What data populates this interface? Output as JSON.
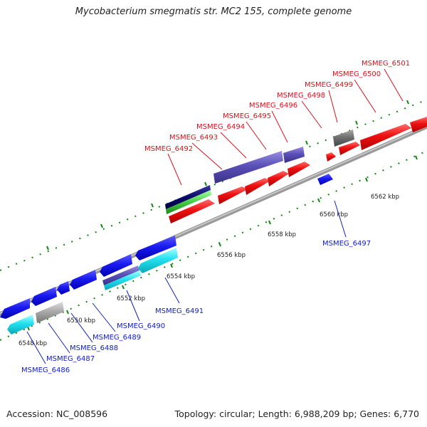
{
  "title": "Mycobacterium smegmatis str. MC2 155, complete genome",
  "footer": {
    "accession": "Accession: NC_008596",
    "summary": "Topology: circular; Length: 6,988,209 bp; Genes: 6,770"
  },
  "scale_labels": [
    "6548 kbp",
    "6550 kbp",
    "6552 kbp",
    "6554 kbp",
    "6556 kbp",
    "6558 kbp",
    "6560 kbp",
    "6562 kbp"
  ],
  "upper_genes": [
    "MSMEG_6492",
    "MSMEG_6493",
    "MSMEG_6494",
    "MSMEG_6495",
    "MSMEG_6496",
    "MSMEG_6498",
    "MSMEG_6499",
    "MSMEG_6500",
    "MSMEG_6501"
  ],
  "lower_genes": [
    "MSMEG_6486",
    "MSMEG_6487",
    "MSMEG_6488",
    "MSMEG_6489",
    "MSMEG_6490",
    "MSMEG_6491",
    "MSMEG_6497"
  ],
  "colors": {
    "forward_gene": "#ee1111",
    "reverse_gene": "#1010ee",
    "cyan_gene": "#22d8e8",
    "lavender_gene": "#6a5acd",
    "navy_gene": "#0a0a6a",
    "green_gene": "#44cc44",
    "gray_gene": "#8a8a8a",
    "backbone": "#9a9a9a",
    "tick": "#118811"
  }
}
